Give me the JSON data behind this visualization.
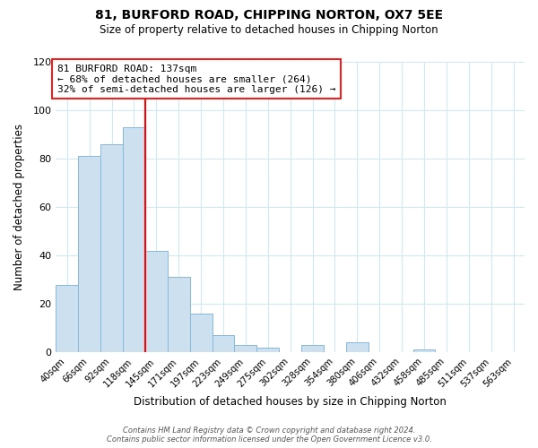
{
  "title": "81, BURFORD ROAD, CHIPPING NORTON, OX7 5EE",
  "subtitle": "Size of property relative to detached houses in Chipping Norton",
  "xlabel": "Distribution of detached houses by size in Chipping Norton",
  "ylabel": "Number of detached properties",
  "bin_labels": [
    "40sqm",
    "66sqm",
    "92sqm",
    "118sqm",
    "145sqm",
    "171sqm",
    "197sqm",
    "223sqm",
    "249sqm",
    "275sqm",
    "302sqm",
    "328sqm",
    "354sqm",
    "380sqm",
    "406sqm",
    "432sqm",
    "458sqm",
    "485sqm",
    "511sqm",
    "537sqm",
    "563sqm"
  ],
  "bar_heights": [
    28,
    81,
    86,
    93,
    42,
    31,
    16,
    7,
    3,
    2,
    0,
    3,
    0,
    4,
    0,
    0,
    1,
    0,
    0,
    0,
    0
  ],
  "bar_color": "#cce0f0",
  "bar_edge_color": "#89b8d8",
  "vline_color": "red",
  "vline_x": 3.5,
  "annotation_line1": "81 BURFORD ROAD: 137sqm",
  "annotation_line2": "← 68% of detached houses are smaller (264)",
  "annotation_line3": "32% of semi-detached houses are larger (126) →",
  "annotation_box_color": "white",
  "annotation_box_edge_color": "red",
  "ylim": [
    0,
    120
  ],
  "yticks": [
    0,
    20,
    40,
    60,
    80,
    100,
    120
  ],
  "footer_line1": "Contains HM Land Registry data © Crown copyright and database right 2024.",
  "footer_line2": "Contains public sector information licensed under the Open Government Licence v3.0.",
  "bg_color": "white",
  "grid_color": "#d0e8f0"
}
